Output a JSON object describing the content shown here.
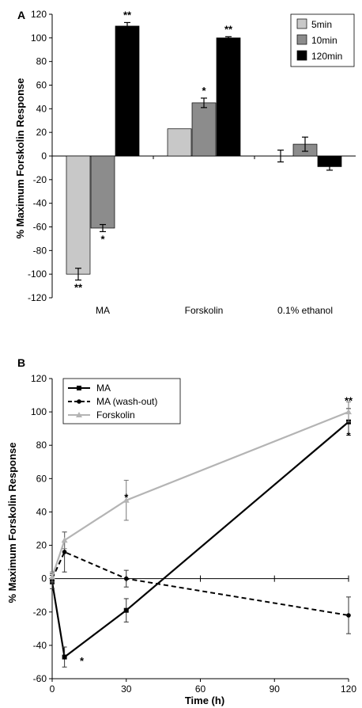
{
  "chart_data": [
    {
      "type": "bar",
      "panel_label": "A",
      "ylabel": "% Maximum Forskolin Response",
      "xlabel": "",
      "ylim": [
        -120,
        120
      ],
      "yticks": [
        -120,
        -100,
        -80,
        -60,
        -40,
        -20,
        0,
        20,
        40,
        60,
        80,
        100,
        120
      ],
      "categories": [
        "MA",
        "Forskolin",
        "0.1% ethanol"
      ],
      "legend_position": "top-right",
      "series": [
        {
          "name": "5min",
          "color": "#c8c8c8",
          "values": [
            -100,
            23,
            0
          ],
          "errors": [
            5,
            0,
            5
          ],
          "sig": [
            "**",
            "",
            ""
          ]
        },
        {
          "name": "10min",
          "color": "#8c8c8c",
          "values": [
            -61,
            45,
            10
          ],
          "errors": [
            3,
            4,
            6
          ],
          "sig": [
            "*",
            "*",
            ""
          ]
        },
        {
          "name": "120min",
          "color": "#000000",
          "values": [
            110,
            100,
            -9
          ],
          "errors": [
            3,
            1,
            3
          ],
          "sig": [
            "**",
            "**",
            ""
          ]
        }
      ]
    },
    {
      "type": "line",
      "panel_label": "B",
      "ylabel": "% Maximum Forskolin Response",
      "xlabel": "Time (h)",
      "xlim": [
        0,
        120
      ],
      "ylim": [
        -60,
        120
      ],
      "xticks": [
        0,
        30,
        60,
        90,
        120
      ],
      "yticks": [
        -60,
        -40,
        -20,
        0,
        20,
        40,
        60,
        80,
        100,
        120
      ],
      "legend_position": "top-left",
      "series": [
        {
          "name": "MA",
          "style": "solid",
          "color": "#000000",
          "marker": "square",
          "x": [
            0,
            5,
            30,
            120
          ],
          "y": [
            -2,
            -47,
            -19,
            94
          ],
          "errors": [
            4,
            6,
            7,
            8
          ]
        },
        {
          "name": "MA  (wash-out)",
          "style": "dashed",
          "color": "#000000",
          "marker": "circle",
          "x": [
            0,
            5,
            30,
            120
          ],
          "y": [
            0,
            16,
            0,
            -22
          ],
          "errors": [
            3,
            12,
            5,
            11
          ]
        },
        {
          "name": "Forskolin",
          "style": "solid",
          "color": "#b4b4b4",
          "marker": "triangle",
          "x": [
            0,
            5,
            30,
            120
          ],
          "y": [
            1,
            23,
            47,
            100
          ],
          "errors": [
            3,
            5,
            12,
            6
          ]
        }
      ],
      "annotations": [
        {
          "text": "*",
          "x": 12,
          "y": -49
        },
        {
          "text": "*",
          "x": 30,
          "y": 49
        },
        {
          "text": "**",
          "x": 120,
          "y": 107
        },
        {
          "text": "*",
          "x": 120,
          "y": 86
        }
      ]
    }
  ]
}
